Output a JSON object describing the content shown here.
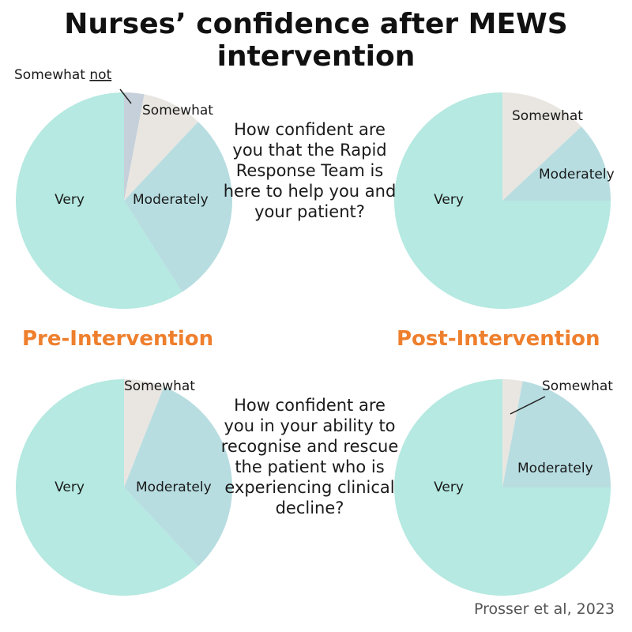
{
  "title": "Nurses’ confidence after MEWS intervention",
  "groups": {
    "pre": "Pre-Intervention",
    "post": "Post-Intervention"
  },
  "questions": [
    "How confident are you that the Rapid Response Team is here to help you and your patient?",
    "How confident are you in your ability to recognise and rescue the patient who is experiencing clinical decline?"
  ],
  "source": "Prosser et al, 2023",
  "colors": {
    "Somewhat not": "#c5d0da",
    "Somewhat": "#e9e6e1",
    "Moderately": "#b7dde1",
    "Very": "#b5e9e1"
  },
  "chart_data": [
    {
      "type": "pie",
      "group": "Pre-Intervention",
      "question": "How confident are you that the Rapid Response Team is here to help you and your patient?",
      "slices": [
        {
          "label": "Somewhat not",
          "value": 3
        },
        {
          "label": "Somewhat",
          "value": 9
        },
        {
          "label": "Moderately",
          "value": 29
        },
        {
          "label": "Very",
          "value": 59
        }
      ]
    },
    {
      "type": "pie",
      "group": "Post-Intervention",
      "question": "How confident are you that the Rapid Response Team is here to help you and your patient?",
      "slices": [
        {
          "label": "Somewhat",
          "value": 13
        },
        {
          "label": "Moderately",
          "value": 12
        },
        {
          "label": "Very",
          "value": 75
        }
      ]
    },
    {
      "type": "pie",
      "group": "Pre-Intervention",
      "question": "How confident are you in your ability to recognise and rescue the patient who is experiencing clinical decline?",
      "slices": [
        {
          "label": "Somewhat",
          "value": 6
        },
        {
          "label": "Moderately",
          "value": 32
        },
        {
          "label": "Very",
          "value": 62
        }
      ]
    },
    {
      "type": "pie",
      "group": "Post-Intervention",
      "question": "How confident are you in your ability to recognise and rescue the patient who is experiencing clinical decline?",
      "slices": [
        {
          "label": "Somewhat",
          "value": 3
        },
        {
          "label": "Moderately",
          "value": 22
        },
        {
          "label": "Very",
          "value": 75
        }
      ]
    }
  ]
}
